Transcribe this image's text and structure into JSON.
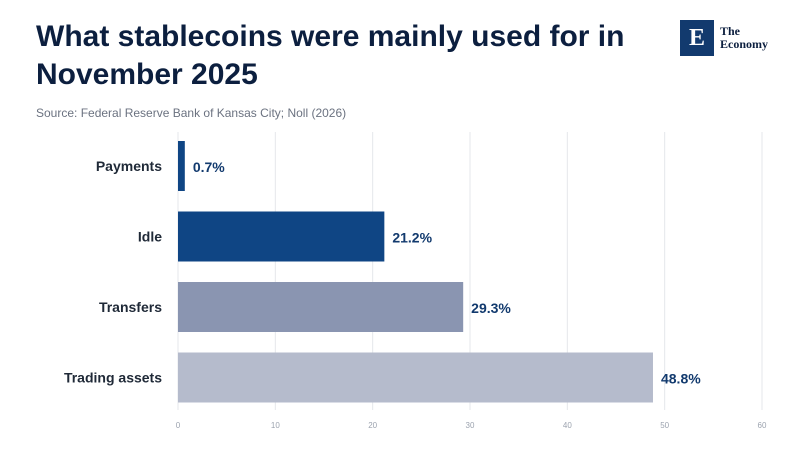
{
  "header": {
    "title": "What stablecoins were mainly used for in November 2025",
    "source": "Source: Federal Reserve Bank of Kansas City; Noll (2026)"
  },
  "logo": {
    "mark": "E",
    "line1": "The",
    "line2": "Economy"
  },
  "colors": {
    "dark_bar": "#0f4584",
    "mid_bar": "#8a95b1",
    "light_bar": "#b5bbcc",
    "grid": "#e5e7eb"
  },
  "chart_data": {
    "type": "bar",
    "orientation": "horizontal",
    "title": "What stablecoins were mainly used for in November 2025",
    "categories": [
      "Payments",
      "Idle",
      "Transfers",
      "Trading assets"
    ],
    "values": [
      0.7,
      21.2,
      29.3,
      48.8
    ],
    "value_labels": [
      "0.7%",
      "21.2%",
      "29.3%",
      "48.8%"
    ],
    "bar_colors": [
      "#0f4584",
      "#0f4584",
      "#8a95b1",
      "#b5bbcc"
    ],
    "xlim": [
      0,
      60
    ],
    "xticks": [
      0,
      10,
      20,
      30,
      40,
      50,
      60
    ],
    "xlabel": "",
    "ylabel": "",
    "grid": true
  }
}
